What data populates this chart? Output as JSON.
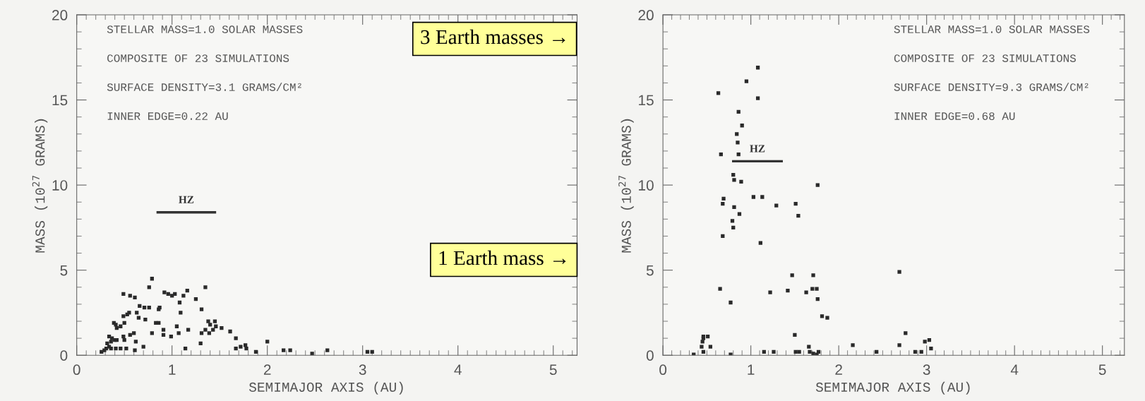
{
  "chart_data": [
    {
      "type": "scatter",
      "xlabel": "SEMIMAJOR AXIS (AU)",
      "ylabel": "MASS (10$^{27}$ GRAMS)",
      "xlim": [
        0,
        5.25
      ],
      "ylim": [
        0,
        20
      ],
      "xticks": [
        0,
        1,
        2,
        3,
        4,
        5
      ],
      "yticks": [
        0,
        5,
        10,
        15,
        20
      ],
      "marker": "square",
      "grid": false,
      "annotations": [
        "STELLAR MASS=1.0 SOLAR MASSES",
        "COMPOSITE OF 23 SIMULATIONS",
        "SURFACE DENSITY=3.1 GRAMS/CM²",
        "INNER EDGE=0.22 AU",
        "3 Earth masses →",
        "1 Earth mass →"
      ],
      "series": [
        {
          "color": "#2a2a2a",
          "x": [
            0.26,
            0.31,
            0.34,
            0.36,
            0.41,
            0.46,
            0.29,
            0.32,
            0.36,
            0.4,
            0.34,
            0.37,
            0.42,
            0.49,
            0.5,
            0.56,
            0.6,
            0.62,
            0.52,
            0.61,
            0.7,
            0.39,
            0.41,
            0.42,
            0.46,
            0.5,
            0.49,
            0.53,
            0.55,
            0.63,
            0.65,
            0.66,
            0.71,
            0.76,
            0.72,
            0.49,
            0.56,
            0.61,
            0.76,
            0.79,
            0.86,
            0.87,
            0.83,
            0.86,
            0.79,
            0.91,
            0.91,
            0.99,
            1.05,
            1.07,
            1.17,
            0.92,
            0.96,
            1.0,
            1.03,
            1.08,
            1.09,
            1.12,
            1.16,
            1.14,
            1.25,
            1.31,
            1.35,
            1.3,
            1.31,
            1.35,
            1.38,
            1.4,
            1.45,
            1.39,
            1.43,
            1.46,
            1.52,
            1.61,
            1.67,
            1.67,
            1.72,
            1.77,
            1.78,
            1.88,
            2.0,
            2.17,
            2.24,
            2.47,
            2.63,
            3.05,
            3.1
          ],
          "values": [
            0.2,
            0.4,
            0.5,
            0.4,
            0.4,
            0.4,
            0.3,
            0.7,
            0.8,
            0.9,
            1.1,
            1.0,
            0.9,
            1.1,
            0.9,
            1.2,
            1.3,
            0.8,
            0.4,
            0.3,
            0.5,
            1.9,
            1.8,
            1.6,
            1.7,
            1.9,
            2.3,
            2.4,
            2.5,
            2.5,
            2.2,
            2.9,
            2.8,
            2.8,
            2.1,
            3.6,
            3.5,
            3.4,
            4.0,
            4.5,
            2.7,
            2.8,
            1.9,
            1.9,
            1.3,
            1.5,
            1.2,
            1.1,
            1.7,
            1.3,
            1.5,
            3.7,
            3.6,
            3.5,
            3.6,
            3.1,
            2.5,
            3.5,
            3.8,
            0.4,
            3.3,
            2.7,
            4.0,
            0.7,
            1.3,
            1.5,
            2.0,
            1.8,
            2.0,
            1.3,
            1.5,
            1.7,
            1.6,
            1.4,
            1.0,
            0.4,
            0.5,
            0.6,
            0.4,
            0.2,
            0.8,
            0.3,
            0.3,
            0.1,
            0.3,
            0.2,
            0.2
          ]
        },
        {
          "type": "line",
          "name": "HZ",
          "marker": "none",
          "color": "#333333",
          "x": [
            0.85,
            1.45
          ],
          "values": [
            8.4,
            8.4
          ]
        }
      ]
    },
    {
      "type": "scatter",
      "xlabel": "SEMIMAJOR AXIS (AU)",
      "ylabel": "MASS (10$^{27}$ GRAMS)",
      "xlim": [
        0,
        5.25
      ],
      "ylim": [
        0,
        20
      ],
      "xticks": [
        0,
        1,
        2,
        3,
        4,
        5
      ],
      "yticks": [
        0,
        5,
        10,
        15,
        20
      ],
      "marker": "square",
      "grid": false,
      "annotations": [
        "STELLAR MASS=1.0 SOLAR MASSES",
        "COMPOSITE OF 23 SIMULATIONS",
        "SURFACE DENSITY=9.3 GRAMS/CM²",
        "INNER EDGE=0.68 AU"
      ],
      "series": [
        {
          "color": "#2a2a2a",
          "x": [
            0.35,
            0.44,
            0.45,
            0.46,
            0.46,
            0.46,
            0.51,
            0.54,
            0.65,
            0.77,
            0.77,
            1.15,
            1.26,
            1.22,
            1.42,
            1.47,
            1.5,
            1.51,
            1.55,
            1.63,
            1.66,
            1.67,
            1.7,
            1.71,
            1.71,
            1.75,
            1.76,
            1.77,
            1.75,
            1.81,
            1.87,
            2.16,
            2.43,
            2.69,
            2.69,
            2.76,
            2.87,
            2.94,
            2.98,
            3.03,
            3.05,
            1.08,
            0.95,
            0.63,
            1.08,
            0.86,
            0.9,
            0.84,
            0.85,
            0.86,
            0.66,
            0.8,
            0.81,
            0.89,
            1.76,
            0.69,
            0.68,
            1.03,
            1.13,
            0.81,
            1.29,
            1.51,
            1.54,
            0.87,
            0.79,
            0.8,
            0.68,
            1.11
          ],
          "values": [
            0.05,
            0.5,
            0.8,
            1.0,
            1.1,
            0.2,
            1.1,
            0.5,
            3.9,
            3.1,
            0.05,
            0.2,
            0.2,
            3.7,
            3.8,
            4.7,
            1.2,
            0.2,
            0.2,
            3.7,
            0.5,
            0.2,
            3.9,
            4.7,
            0.1,
            3.9,
            3.3,
            0.2,
            0.05,
            2.3,
            2.2,
            0.6,
            0.2,
            4.9,
            0.6,
            1.3,
            0.2,
            0.2,
            0.8,
            0.9,
            0.4,
            16.9,
            16.1,
            15.4,
            15.1,
            14.3,
            13.5,
            13.0,
            12.5,
            11.8,
            11.8,
            10.6,
            10.3,
            10.2,
            10.0,
            9.2,
            8.9,
            9.3,
            9.3,
            8.7,
            8.8,
            8.9,
            8.2,
            8.3,
            7.9,
            7.5,
            7.0,
            6.6
          ]
        },
        {
          "type": "line",
          "name": "HZ",
          "marker": "none",
          "color": "#333333",
          "x": [
            0.8,
            1.35
          ],
          "values": [
            11.4,
            11.4
          ]
        }
      ]
    }
  ]
}
